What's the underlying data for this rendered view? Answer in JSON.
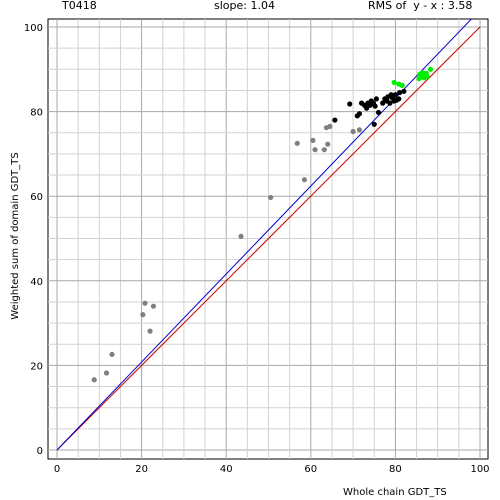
{
  "header": {
    "target": "T0418",
    "slope": "slope: 1.04",
    "rms": "RMS of  y - x : 3.58"
  },
  "chart_data": {
    "type": "scatter",
    "xlabel": "Whole chain GDT_TS",
    "ylabel": "Weighted sum of domain GDT_TS",
    "xlim": [
      0,
      100
    ],
    "ylim": [
      0,
      100
    ],
    "x_ticks": [
      0,
      20,
      40,
      60,
      80,
      100
    ],
    "y_ticks": [
      0,
      20,
      40,
      60,
      80,
      100
    ],
    "grid": true,
    "lines": [
      {
        "name": "y=x",
        "color": "#cc0000",
        "slope": 1.0
      },
      {
        "name": "fit",
        "color": "#0000cc",
        "slope": 1.04
      }
    ],
    "series": [
      {
        "color": "#808080",
        "points": [
          [
            8.8,
            16.6
          ],
          [
            11.7,
            18.2
          ],
          [
            13.0,
            22.6
          ],
          [
            20.3,
            32.0
          ],
          [
            20.8,
            34.7
          ],
          [
            22.0,
            28.1
          ],
          [
            22.8,
            34.0
          ],
          [
            43.5,
            50.5
          ],
          [
            50.5,
            59.7
          ],
          [
            56.8,
            72.5
          ],
          [
            58.5,
            63.9
          ],
          [
            60.5,
            73.2
          ],
          [
            61.0,
            71.0
          ],
          [
            63.2,
            71.0
          ],
          [
            63.7,
            76.2
          ],
          [
            64.0,
            72.3
          ],
          [
            64.5,
            76.5
          ],
          [
            70.0,
            75.3
          ],
          [
            71.5,
            75.7
          ]
        ]
      },
      {
        "color": "#000000",
        "points": [
          [
            65.7,
            78.0
          ],
          [
            69.2,
            81.8
          ],
          [
            71.0,
            79.0
          ],
          [
            71.5,
            79.5
          ],
          [
            72.0,
            82.0
          ],
          [
            72.7,
            81.5
          ],
          [
            73.2,
            80.8
          ],
          [
            73.5,
            82.0
          ],
          [
            74.0,
            81.5
          ],
          [
            74.3,
            82.5
          ],
          [
            74.8,
            82.0
          ],
          [
            75.2,
            81.3
          ],
          [
            75.5,
            83.0
          ],
          [
            76.0,
            79.8
          ],
          [
            75.0,
            77.0
          ],
          [
            77.0,
            82.0
          ],
          [
            77.5,
            83.0
          ],
          [
            78.0,
            82.5
          ],
          [
            78.2,
            83.5
          ],
          [
            78.7,
            82.0
          ],
          [
            79.0,
            84.0
          ],
          [
            79.3,
            83.2
          ],
          [
            79.7,
            82.5
          ],
          [
            80.0,
            84.0
          ],
          [
            80.3,
            82.7
          ],
          [
            80.8,
            83.0
          ],
          [
            81.0,
            84.5
          ],
          [
            82.0,
            84.8
          ]
        ]
      },
      {
        "color": "#00ee00",
        "points": [
          [
            79.7,
            86.9
          ],
          [
            80.8,
            86.5
          ],
          [
            81.6,
            86.2
          ],
          [
            85.6,
            87.8
          ],
          [
            85.8,
            88.9
          ],
          [
            86.2,
            88.2
          ],
          [
            86.5,
            89.2
          ],
          [
            86.8,
            88.0
          ],
          [
            87.0,
            88.6
          ],
          [
            87.3,
            89.0
          ],
          [
            87.5,
            88.3
          ],
          [
            88.3,
            90.0
          ]
        ]
      }
    ]
  }
}
